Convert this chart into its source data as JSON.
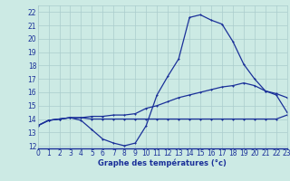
{
  "title": "Graphe des températures (°c)",
  "bg_color": "#cceae4",
  "grid_color": "#aacccc",
  "line_color": "#1a3099",
  "hours": [
    0,
    1,
    2,
    3,
    4,
    5,
    6,
    7,
    8,
    9,
    10,
    11,
    12,
    13,
    14,
    15,
    16,
    17,
    18,
    19,
    20,
    21,
    22,
    23
  ],
  "temp_actual": [
    13.5,
    13.9,
    14.0,
    14.1,
    13.9,
    13.2,
    12.5,
    12.2,
    12.0,
    12.2,
    13.5,
    15.8,
    17.2,
    18.5,
    21.6,
    21.8,
    21.4,
    21.1,
    19.8,
    18.1,
    17.0,
    16.1,
    15.9,
    15.6
  ],
  "temp_max": [
    13.5,
    13.9,
    14.0,
    14.1,
    14.1,
    14.2,
    14.2,
    14.3,
    14.3,
    14.4,
    14.8,
    15.0,
    15.3,
    15.6,
    15.8,
    16.0,
    16.2,
    16.4,
    16.5,
    16.7,
    16.5,
    16.1,
    15.8,
    14.5
  ],
  "temp_min": [
    13.5,
    13.9,
    14.0,
    14.1,
    14.1,
    14.0,
    14.0,
    14.0,
    14.0,
    14.0,
    14.0,
    14.0,
    14.0,
    14.0,
    14.0,
    14.0,
    14.0,
    14.0,
    14.0,
    14.0,
    14.0,
    14.0,
    14.0,
    14.3
  ],
  "ylim": [
    11.8,
    22.5
  ],
  "xlim": [
    0,
    23
  ],
  "yticks": [
    12,
    13,
    14,
    15,
    16,
    17,
    18,
    19,
    20,
    21,
    22
  ],
  "xticks": [
    0,
    1,
    2,
    3,
    4,
    5,
    6,
    7,
    8,
    9,
    10,
    11,
    12,
    13,
    14,
    15,
    16,
    17,
    18,
    19,
    20,
    21,
    22,
    23
  ],
  "ylabel_size": 5.5,
  "xlabel_size": 6.0
}
